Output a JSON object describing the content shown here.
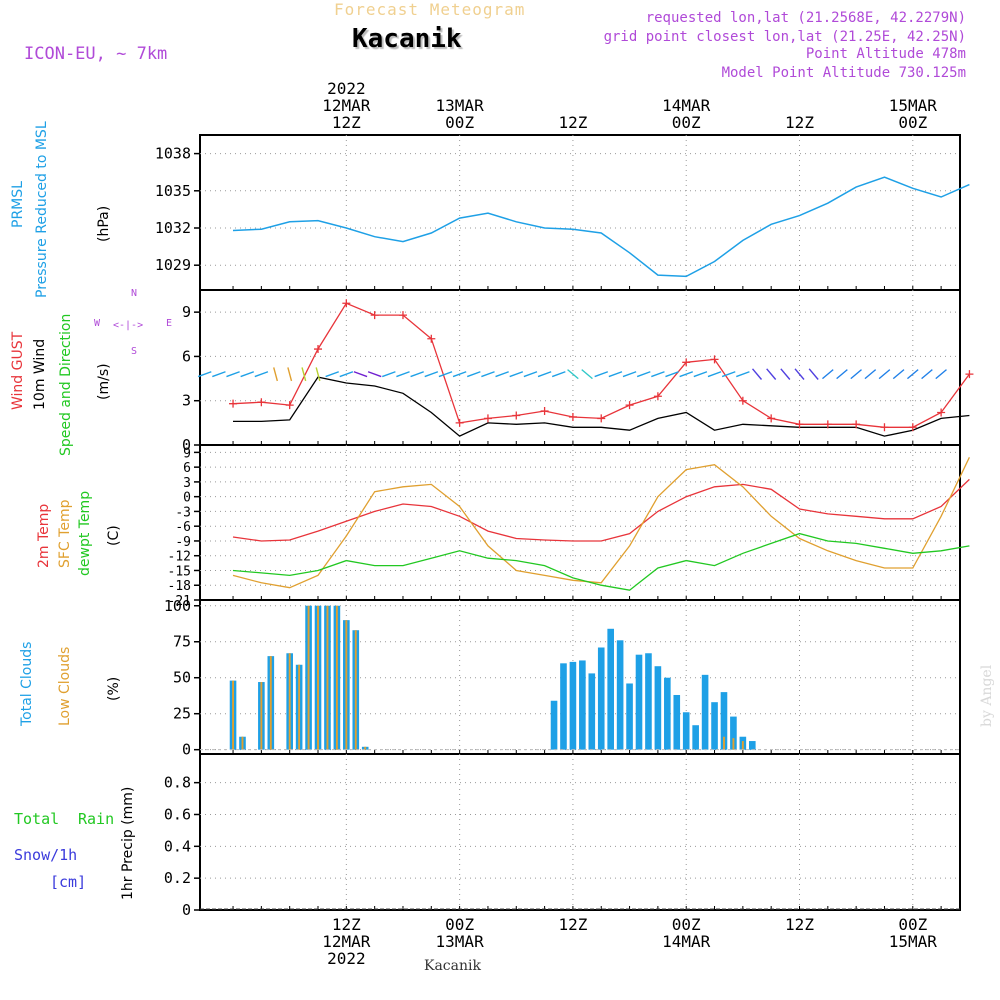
{
  "header": {
    "subtitle": "Forecast Meteogram",
    "title": "Kacanik",
    "model": "ICON-EU, ~ 7km",
    "requested": "requested lon,lat (21.2568E, 42.2279N)",
    "grid_point": "grid point closest lon,lat (21.25E, 42.25N)",
    "point_altitude": "Point Altitude 478m",
    "model_altitude": "Model Point Altitude 730.125m",
    "credit": "by Angel",
    "footer": "Kacanik"
  },
  "colors": {
    "pressure": "#1ea0e6",
    "gust": "#e8343a",
    "wind": "#000000",
    "temp2m": "#e8343a",
    "sfc": "#e0a030",
    "dewpt": "#22c822",
    "total_clouds": "#1ea0e6",
    "low_clouds": "#e0a030",
    "rain": "#22c822",
    "snow": "#3a3adc",
    "label_purple": "#b04ad8"
  },
  "chart_data": [
    {
      "type": "line",
      "panel": "pressure",
      "ylabel_lines": [
        "PRMSL",
        "Pressure Reduced to MSL"
      ],
      "unit": "(hPa)",
      "ylim": [
        1027,
        1039.5
      ],
      "yticks": [
        1029,
        1032,
        1035,
        1038
      ],
      "x_hours": [
        0,
        3,
        6,
        9,
        12,
        15,
        18,
        21,
        24,
        27,
        30,
        33,
        36,
        39,
        42,
        45,
        48,
        51,
        54,
        57,
        60,
        63,
        66,
        69,
        72,
        75,
        78
      ],
      "series": [
        {
          "values": [
            1031.8,
            1031.9,
            1032.5,
            1032.6,
            1032.0,
            1031.3,
            1030.9,
            1031.6,
            1032.8,
            1033.2,
            1032.5,
            1032.0,
            1031.9,
            1031.6,
            1030.0,
            1028.2,
            1028.1,
            1029.3,
            1031.0,
            1032.3,
            1033.0,
            1034.0,
            1035.3,
            1036.1,
            1035.2,
            1034.5,
            1035.5
          ]
        }
      ]
    },
    {
      "type": "line",
      "panel": "wind",
      "ylabel_lines": [
        "Wind GUST",
        "10m Wind",
        "Speed and Direction"
      ],
      "unit": "(m/s)",
      "compass": {
        "n": "N",
        "s": "S",
        "e": "E",
        "w": "W"
      },
      "ylim": [
        0,
        10.5
      ],
      "yticks": [
        0,
        3,
        6,
        9
      ],
      "x_hours": [
        0,
        3,
        6,
        9,
        12,
        15,
        18,
        21,
        24,
        27,
        30,
        33,
        36,
        39,
        42,
        45,
        48,
        51,
        54,
        57,
        60,
        63,
        66,
        69,
        72,
        75,
        78
      ],
      "series": [
        {
          "name": "Wind GUST",
          "values": [
            2.8,
            2.9,
            2.7,
            6.5,
            9.6,
            8.8,
            8.8,
            7.2,
            1.5,
            1.8,
            2.0,
            2.3,
            1.9,
            1.8,
            2.7,
            3.3,
            5.6,
            5.8,
            3.0,
            1.8,
            1.4,
            1.4,
            1.4,
            1.2,
            1.2,
            2.2,
            4.8
          ]
        },
        {
          "name": "10m Wind",
          "values": [
            1.6,
            1.6,
            1.7,
            4.6,
            4.2,
            4.0,
            3.5,
            2.2,
            0.6,
            1.5,
            1.4,
            1.5,
            1.2,
            1.2,
            1.0,
            1.8,
            2.2,
            1.0,
            1.4,
            1.3,
            1.2,
            1.2,
            1.2,
            0.6,
            1.0,
            1.8,
            2.0
          ]
        }
      ]
    },
    {
      "type": "line",
      "panel": "temperature",
      "ylabel_lines": [
        "2m Temp",
        "SFC Temp",
        "dewpt Temp"
      ],
      "unit": "(C)",
      "ylim": [
        -21,
        10.5
      ],
      "yticks": [
        -21,
        -18,
        -15,
        -12,
        -9,
        -6,
        -3,
        0,
        3,
        6,
        9
      ],
      "x_hours": [
        0,
        3,
        6,
        9,
        12,
        15,
        18,
        21,
        24,
        27,
        30,
        33,
        36,
        39,
        42,
        45,
        48,
        51,
        54,
        57,
        60,
        63,
        66,
        69,
        72,
        75,
        78
      ],
      "series": [
        {
          "name": "2m Temp",
          "values": [
            -8.2,
            -9.0,
            -8.8,
            -7.0,
            -5.0,
            -3.0,
            -1.5,
            -2.0,
            -4.0,
            -7.0,
            -8.5,
            -8.8,
            -9.0,
            -9.0,
            -7.5,
            -3.0,
            0.0,
            2.0,
            2.5,
            1.5,
            -2.5,
            -3.5,
            -4.0,
            -4.5,
            -4.5,
            -2.0,
            3.5
          ]
        },
        {
          "name": "SFC Temp",
          "values": [
            -16.0,
            -17.5,
            -18.5,
            -16.0,
            -8.0,
            1.0,
            2.0,
            2.5,
            -2.0,
            -10.0,
            -15.0,
            -16.0,
            -17.0,
            -17.5,
            -10.0,
            0.0,
            5.5,
            6.5,
            2.0,
            -4.0,
            -8.5,
            -11.0,
            -13.0,
            -14.5,
            -14.5,
            -4.0,
            8.0
          ]
        },
        {
          "name": "dewpt Temp",
          "values": [
            -15.0,
            -15.5,
            -16.0,
            -15.0,
            -13.0,
            -14.0,
            -14.0,
            -12.5,
            -11.0,
            -12.5,
            -13.0,
            -14.0,
            -16.5,
            -18.0,
            -19.0,
            -14.5,
            -13.0,
            -14.0,
            -11.5,
            -9.5,
            -7.5,
            -9.0,
            -9.5,
            -10.5,
            -11.5,
            -11.0,
            -10.0
          ]
        }
      ]
    },
    {
      "type": "bar",
      "panel": "clouds",
      "ylabel_lines": [
        "Total Clouds",
        "Low Clouds"
      ],
      "unit": "(%)",
      "ylim": [
        -3,
        104
      ],
      "yticks": [
        0,
        25,
        50,
        75,
        100
      ],
      "x_hours": [
        0,
        1,
        3,
        4,
        6,
        7,
        8,
        9,
        10,
        11,
        12,
        13,
        14,
        15,
        16,
        20,
        34,
        35,
        36,
        37,
        38,
        39,
        40,
        41,
        42,
        43,
        44,
        45,
        46,
        47,
        48,
        49,
        50,
        51,
        52,
        53,
        54,
        55,
        56,
        57,
        58,
        59,
        60
      ],
      "series": [
        {
          "name": "Total Clouds",
          "values": [
            48,
            9,
            47,
            65,
            67,
            59,
            100,
            100,
            100,
            100,
            90,
            83,
            2,
            0,
            0,
            0,
            34,
            60,
            61,
            62,
            53,
            71,
            84,
            76,
            46,
            66,
            67,
            58,
            50,
            38,
            26,
            17,
            52,
            33,
            40,
            23,
            9,
            6,
            0,
            0,
            0,
            0,
            0
          ]
        },
        {
          "name": "Low Clouds",
          "values": [
            48,
            9,
            47,
            65,
            67,
            59,
            100,
            100,
            100,
            100,
            90,
            83,
            2,
            0,
            0,
            0,
            0,
            0,
            0,
            0,
            0,
            0,
            0,
            0,
            0,
            0,
            0,
            0,
            0,
            0,
            0,
            0,
            0,
            0,
            9,
            8,
            6,
            0,
            0,
            0,
            0,
            0,
            0
          ]
        }
      ]
    },
    {
      "type": "bar",
      "panel": "precip",
      "ylabel_lines": [
        "1hr Precip (mm)"
      ],
      "left_labels": [
        "Total",
        "Rain",
        "Snow/1h",
        "[cm]"
      ],
      "ylim": [
        0,
        0.98
      ],
      "yticks": [
        0,
        0.2,
        0.4,
        0.6,
        0.8
      ],
      "ytick_labels": [
        "0",
        "0.2",
        "0.4",
        "0.6",
        "0.8"
      ],
      "values": []
    }
  ],
  "time_axis": {
    "top_labels": [
      {
        "hour": 12,
        "lines": [
          "2022",
          "12MAR",
          "12Z"
        ]
      },
      {
        "hour": 24,
        "lines": [
          "13MAR",
          "00Z"
        ]
      },
      {
        "hour": 36,
        "lines": [
          "12Z"
        ]
      },
      {
        "hour": 48,
        "lines": [
          "14MAR",
          "00Z"
        ]
      },
      {
        "hour": 60,
        "lines": [
          "12Z"
        ]
      },
      {
        "hour": 72,
        "lines": [
          "15MAR",
          "00Z"
        ]
      }
    ],
    "bottom_labels": [
      {
        "hour": 12,
        "lines": [
          "12Z",
          "12MAR",
          "2022"
        ]
      },
      {
        "hour": 24,
        "lines": [
          "00Z",
          "13MAR"
        ]
      },
      {
        "hour": 36,
        "lines": [
          "12Z"
        ]
      },
      {
        "hour": 48,
        "lines": [
          "00Z",
          "14MAR"
        ]
      },
      {
        "hour": 60,
        "lines": [
          "12Z"
        ]
      },
      {
        "hour": 72,
        "lines": [
          "00Z",
          "15MAR"
        ]
      }
    ]
  }
}
